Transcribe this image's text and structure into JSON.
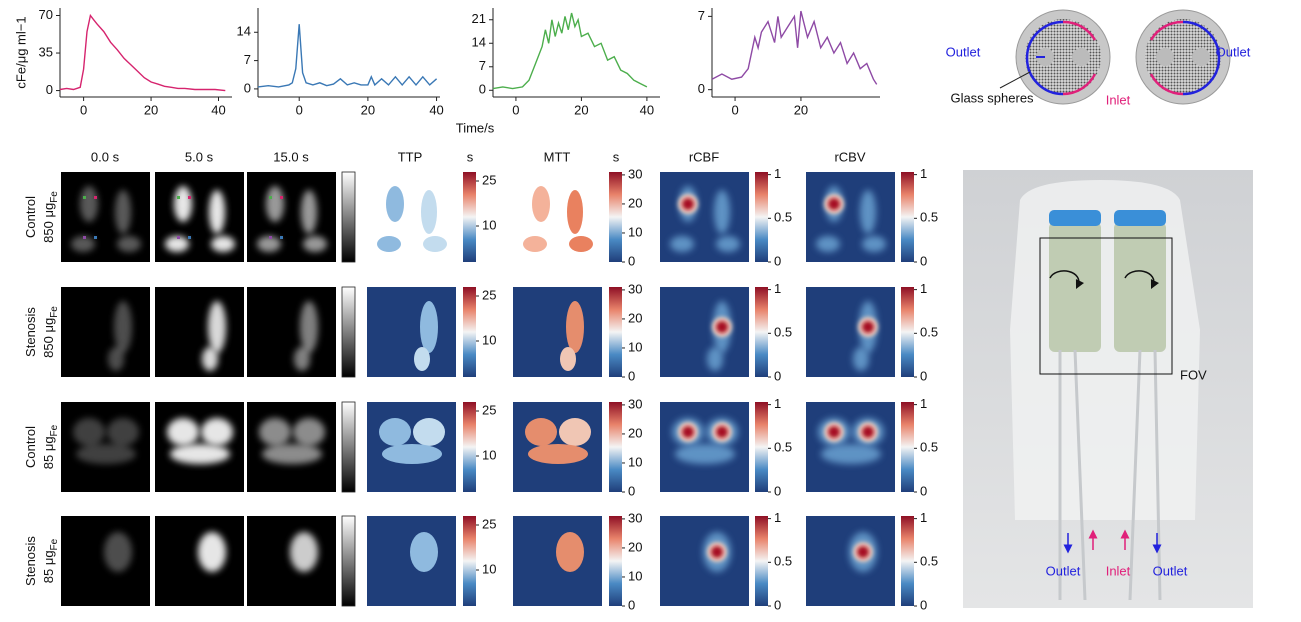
{
  "chart_data": [
    {
      "type": "line",
      "y_label": "cFe/μg ml−1",
      "x": [
        -7,
        -5,
        -3,
        -1,
        0,
        1,
        2,
        3,
        4,
        6,
        8,
        10,
        12,
        14,
        16,
        18,
        20,
        22,
        24,
        26,
        28,
        30,
        33,
        36,
        39,
        42
      ],
      "series": [
        {
          "color": "#d6246e",
          "values": [
            1,
            2,
            1,
            3,
            20,
            55,
            70,
            66,
            62,
            55,
            45,
            38,
            30,
            24,
            18,
            12,
            8,
            6,
            4,
            3,
            2,
            2,
            1,
            1,
            1,
            0
          ]
        }
      ],
      "xlim": [
        -7,
        44
      ],
      "xticks": [
        0,
        20,
        40
      ],
      "ylim": [
        -6,
        77
      ],
      "yticks": [
        0,
        35,
        70
      ]
    },
    {
      "type": "line",
      "x_label": "Time/s",
      "x": [
        -12,
        -9,
        -6,
        -3,
        -2,
        -1,
        0,
        1,
        2,
        4,
        6,
        8,
        10,
        12,
        14,
        16,
        18,
        20,
        21,
        22,
        24,
        26,
        28,
        30,
        32,
        34,
        36,
        38,
        40
      ],
      "series": [
        {
          "color": "#3a78b5",
          "values": [
            0.5,
            0.8,
            0.5,
            1,
            1.5,
            5,
            16,
            4,
            1.5,
            1,
            1.5,
            0.8,
            1.2,
            2.5,
            1,
            1.5,
            1,
            1,
            3,
            1,
            2.5,
            1,
            3,
            1,
            3,
            1,
            3,
            1,
            2.5
          ]
        }
      ],
      "xlim": [
        -12,
        41
      ],
      "xticks": [
        0,
        20,
        40
      ],
      "ylim": [
        -2,
        20
      ],
      "yticks": [
        0,
        7,
        14
      ]
    },
    {
      "type": "line",
      "x": [
        -7,
        -4,
        -1,
        2,
        4,
        6,
        8,
        9,
        10,
        11,
        12,
        13,
        14,
        15,
        16,
        17,
        18,
        19,
        20,
        22,
        24,
        26,
        28,
        30,
        32,
        34,
        36,
        38,
        40
      ],
      "series": [
        {
          "color": "#4cae4c",
          "values": [
            0.5,
            1,
            0.5,
            1,
            3,
            8,
            13,
            18,
            14,
            21,
            16,
            20,
            17,
            22,
            18,
            23,
            19,
            21,
            16,
            17,
            13,
            14,
            9,
            10,
            6,
            5,
            3,
            2,
            1
          ]
        }
      ],
      "xlim": [
        -7,
        44
      ],
      "xticks": [
        0,
        20,
        40
      ],
      "ylim": [
        -2,
        24.5
      ],
      "yticks": [
        0,
        7,
        14,
        21
      ]
    },
    {
      "type": "line",
      "x": [
        -7,
        -4,
        -1,
        2,
        4,
        6,
        7,
        8,
        10,
        12,
        13,
        14,
        16,
        18,
        19,
        20,
        22,
        24,
        26,
        28,
        30,
        32,
        34,
        36,
        38,
        40,
        42,
        43
      ],
      "series": [
        {
          "color": "#8e4aa5",
          "values": [
            1,
            1.5,
            1,
            1.2,
            2,
            5,
            4,
            5.5,
            6.5,
            4.5,
            7,
            5,
            6,
            7,
            4,
            7.5,
            5,
            6.5,
            4,
            5,
            3.5,
            4.5,
            2.5,
            3.5,
            2,
            2.5,
            1,
            0.5
          ]
        }
      ],
      "xlim": [
        -7,
        44
      ],
      "xticks": [
        0,
        20
      ],
      "ylim": [
        -0.7,
        7.8
      ],
      "yticks": [
        0,
        7
      ]
    }
  ],
  "map_panels": {
    "columns": [
      "0.0 s",
      "5.0 s",
      "15.0 s",
      "TTP",
      "MTT",
      "rCBF",
      "rCBV"
    ],
    "rows": [
      {
        "condition": "Control",
        "dose": "850 μg",
        "dose_subscript": "Fe"
      },
      {
        "condition": "Stenosis",
        "dose": "850 μg",
        "dose_subscript": "Fe"
      },
      {
        "condition": "Control",
        "dose": "85 μg",
        "dose_subscript": "Fe"
      },
      {
        "condition": "Stenosis",
        "dose": "85 μg",
        "dose_subscript": "Fe"
      }
    ],
    "colorbars": [
      {
        "unit": "s",
        "lim": [
          -2,
          28
        ],
        "ticks": [
          10,
          25
        ]
      },
      {
        "unit": "s",
        "lim": [
          0,
          31
        ],
        "ticks": [
          0,
          10,
          20,
          30
        ]
      },
      {
        "lim": [
          0,
          1.03
        ],
        "ticks": [
          0,
          0.5,
          1
        ]
      },
      {
        "lim": [
          0,
          1.03
        ],
        "ticks": [
          0,
          0.5,
          1
        ]
      }
    ]
  },
  "inset_diagram": {
    "outlet_left": "Outlet",
    "glass_spheres": "Glass spheres",
    "inlet": "Inlet",
    "outlet_right": "Outlet"
  },
  "photo": {
    "fov": "FOV",
    "outlet_left": "Outlet",
    "inlet": "Inlet",
    "outlet_right": "Outlet"
  }
}
